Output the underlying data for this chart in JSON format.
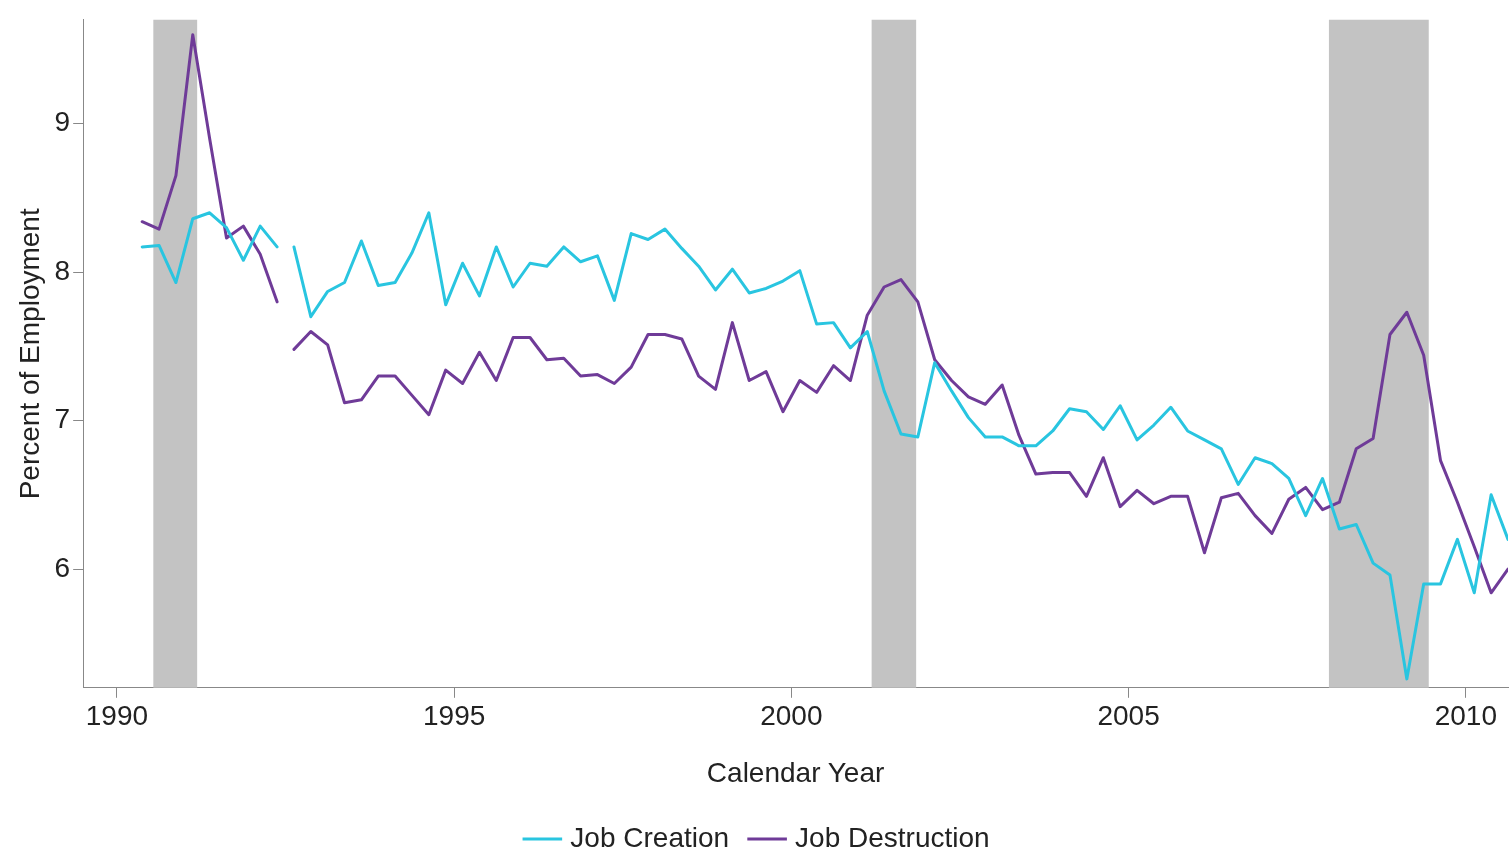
{
  "chart_data": {
    "type": "line",
    "xlabel": "Calendar Year",
    "ylabel": "Percent of Employment",
    "x": [
      1990.375,
      1990.625,
      1990.875,
      1991.125,
      1991.375,
      1991.625,
      1991.875,
      1992.125,
      1992.375,
      1992.5,
      1992.625,
      1992.875,
      1993.125,
      1993.375,
      1993.625,
      1993.875,
      1994.125,
      1994.375,
      1994.625,
      1994.875,
      1995.125,
      1995.375,
      1995.625,
      1995.875,
      1996.125,
      1996.375,
      1996.625,
      1996.875,
      1997.125,
      1997.375,
      1997.625,
      1997.875,
      1998.125,
      1998.375,
      1998.625,
      1998.875,
      1999.125,
      1999.375,
      1999.625,
      1999.875,
      2000.125,
      2000.375,
      2000.625,
      2000.875,
      2001.125,
      2001.375,
      2001.625,
      2001.875,
      2002.125,
      2002.375,
      2002.625,
      2002.875,
      2003.125,
      2003.375,
      2003.625,
      2003.875,
      2004.125,
      2004.375,
      2004.625,
      2004.875,
      2005.125,
      2005.375,
      2005.625,
      2005.875,
      2006.125,
      2006.375,
      2006.625,
      2006.875,
      2007.125,
      2007.375,
      2007.625,
      2007.875,
      2008.125,
      2008.375,
      2008.625,
      2008.875,
      2009.125,
      2009.375,
      2009.625,
      2009.875,
      2010.125,
      2010.375,
      2010.625
    ],
    "series": [
      {
        "name": "Job Creation",
        "color": "#29c5e0",
        "values": [
          8.17,
          8.18,
          7.93,
          8.36,
          8.4,
          8.3,
          8.08,
          8.31,
          8.17,
          null,
          8.17,
          7.7,
          7.87,
          7.93,
          8.21,
          7.91,
          7.93,
          8.13,
          8.4,
          7.78,
          8.06,
          7.84,
          8.17,
          7.9,
          8.06,
          8.04,
          8.17,
          8.07,
          8.11,
          7.81,
          8.26,
          8.22,
          8.29,
          8.16,
          8.04,
          7.88,
          8.02,
          7.86,
          7.89,
          7.94,
          8.01,
          7.65,
          7.66,
          7.49,
          7.6,
          7.2,
          6.91,
          6.89,
          7.39,
          7.2,
          7.02,
          6.89,
          6.89,
          6.83,
          6.83,
          6.93,
          7.08,
          7.06,
          6.94,
          7.1,
          6.87,
          6.97,
          7.09,
          6.93,
          6.87,
          6.81,
          6.57,
          6.75,
          6.71,
          6.61,
          6.36,
          6.61,
          6.27,
          6.3,
          6.04,
          5.96,
          5.26,
          5.9,
          5.9,
          6.2,
          5.84,
          6.5,
          6.2
        ]
      },
      {
        "name": "Job Destruction",
        "color": "#6f3b98",
        "values": [
          8.34,
          8.29,
          8.65,
          9.6,
          8.9,
          8.23,
          8.31,
          8.12,
          7.8,
          null,
          7.48,
          7.6,
          7.51,
          7.12,
          7.14,
          7.3,
          7.3,
          7.17,
          7.04,
          7.34,
          7.25,
          7.46,
          7.27,
          7.56,
          7.56,
          7.41,
          7.42,
          7.3,
          7.31,
          7.25,
          7.36,
          7.58,
          7.58,
          7.55,
          7.3,
          7.21,
          7.66,
          7.27,
          7.33,
          7.06,
          7.27,
          7.19,
          7.37,
          7.27,
          7.71,
          7.9,
          7.95,
          7.8,
          7.41,
          7.27,
          7.16,
          7.11,
          7.24,
          6.9,
          6.64,
          6.65,
          6.65,
          6.49,
          6.75,
          6.42,
          6.53,
          6.44,
          6.49,
          6.49,
          6.11,
          6.48,
          6.51,
          6.36,
          6.24,
          6.47,
          6.55,
          6.4,
          6.45,
          6.81,
          6.88,
          7.58,
          7.73,
          7.44,
          6.73,
          6.45,
          6.15,
          5.84,
          6.0
        ]
      }
    ],
    "xlim": [
      1989.5,
      2010.625
    ],
    "xticks": [
      1990,
      1995,
      2000,
      2005,
      2010
    ],
    "ylim": [
      5.2,
      9.7
    ],
    "yticks": [
      6,
      7,
      8,
      9
    ],
    "bands": [
      {
        "axis": "x",
        "from": 1990.54,
        "to": 1991.19,
        "color": "#c3c3c3"
      },
      {
        "axis": "x",
        "from": 2001.19,
        "to": 2001.85,
        "color": "#c3c3c3"
      },
      {
        "axis": "x",
        "from": 2007.97,
        "to": 2009.45,
        "color": "#c3c3c3"
      }
    ],
    "grid": false,
    "legend": "bottom",
    "marker": "none",
    "line_style": "solid"
  }
}
